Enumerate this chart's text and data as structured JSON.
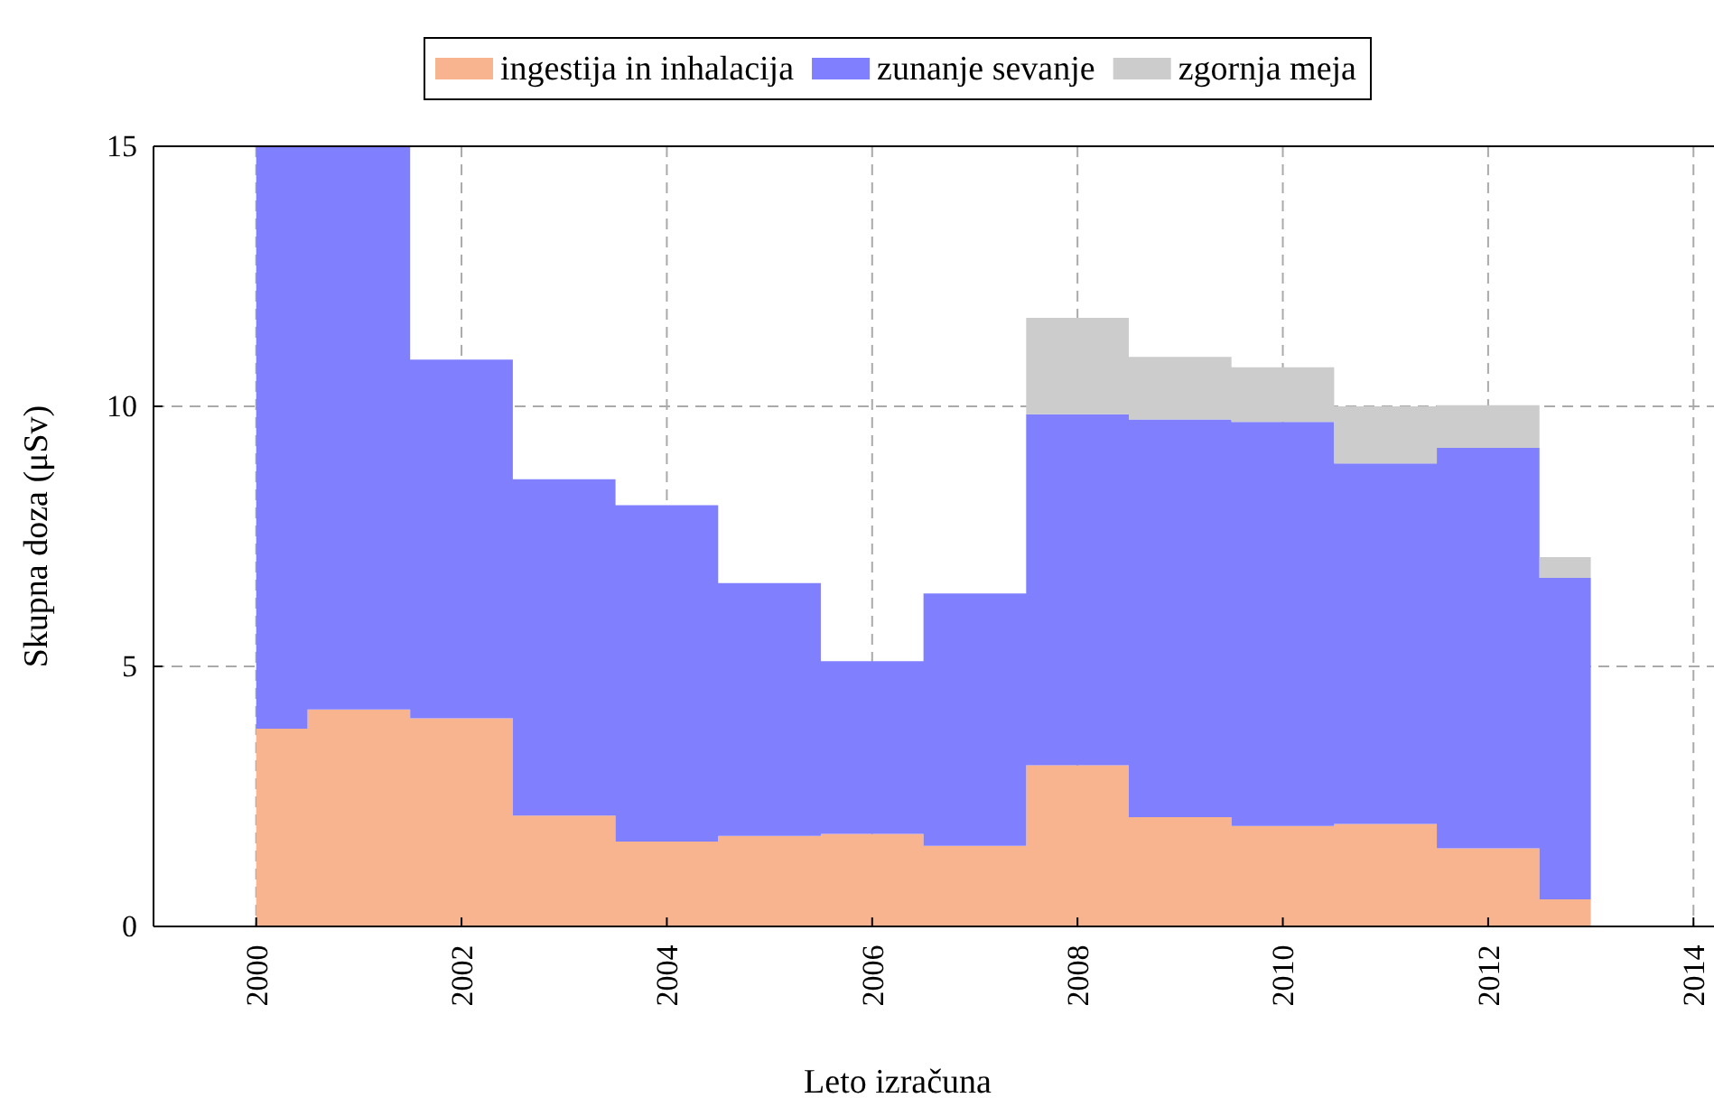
{
  "chart_data": {
    "type": "area",
    "stacked": true,
    "xlabel": "Leto izračuna",
    "ylabel": "Skupna doza (μSv)",
    "x": [
      2000,
      2000.5,
      2001.5,
      2002.5,
      2003.5,
      2004.5,
      2005.5,
      2006.5,
      2007.5,
      2008.5,
      2009.5,
      2010.5,
      2011.5,
      2012.5,
      2013
    ],
    "series": [
      {
        "name": "ingestija in inhalacija",
        "color": "#f7b48f",
        "values": [
          3.8,
          4.17,
          4.0,
          2.13,
          1.63,
          1.74,
          1.78,
          1.55,
          3.1,
          2.1,
          1.93,
          1.97,
          1.5,
          0.52,
          0.52
        ]
      },
      {
        "name": "zunanje sevanje",
        "color": "#8080ff",
        "values": [
          11.2,
          10.83,
          6.9,
          6.47,
          6.47,
          4.86,
          3.32,
          4.85,
          6.75,
          7.65,
          7.77,
          6.93,
          7.7,
          6.18,
          6.18
        ]
      },
      {
        "name": "zgornja meja",
        "color": "#cccccc",
        "values": [
          0,
          0,
          0,
          0,
          0,
          0,
          0,
          0,
          1.85,
          1.2,
          1.05,
          1.1,
          0.82,
          0.4,
          0.4
        ]
      }
    ],
    "xlim": [
      1999,
      2014.2
    ],
    "xticks": [
      2000,
      2002,
      2004,
      2006,
      2008,
      2010,
      2012,
      2014
    ],
    "ylim": [
      0,
      15
    ],
    "yticks": [
      0,
      5,
      10,
      15
    ],
    "grid": true,
    "legend": "top"
  }
}
